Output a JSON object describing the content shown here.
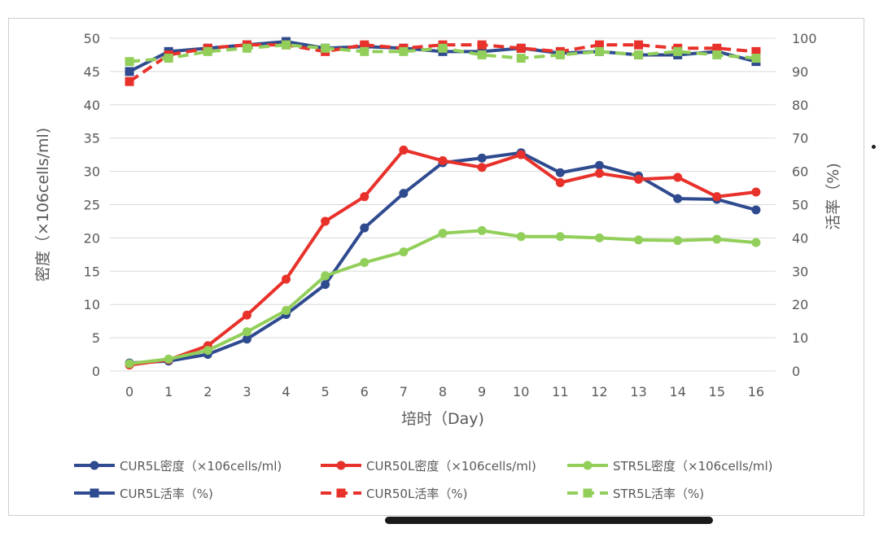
{
  "chart_data": {
    "type": "line",
    "x": [
      0,
      1,
      2,
      3,
      4,
      5,
      6,
      7,
      8,
      9,
      10,
      11,
      12,
      13,
      14,
      15,
      16
    ],
    "x_label": "培时（Day)",
    "y_left_label": "密度（×106cells/ml)",
    "y_right_label": "活率（%)",
    "y_left_lim": [
      0,
      50
    ],
    "y_right_lim": [
      0,
      100
    ],
    "y_left_ticks": [
      0,
      5,
      10,
      15,
      20,
      25,
      30,
      35,
      40,
      45,
      50
    ],
    "y_right_ticks": [
      0,
      10,
      20,
      30,
      40,
      50,
      60,
      70,
      80,
      90,
      100
    ],
    "gridlines": true,
    "legend_position": "bottom",
    "colors": {
      "blue": "#2f4b8f",
      "red": "#e8312a",
      "green": "#92cf5a",
      "grid": "#d9d9d9",
      "text": "#595959"
    },
    "series": [
      {
        "name": "CUR5L密度（×106cells/ml)",
        "axis": "left",
        "marker": "circle",
        "dash": "solid",
        "color": "#2f4b8f",
        "values": [
          1.2,
          1.5,
          2.5,
          4.8,
          8.5,
          13,
          21.5,
          26.7,
          31.3,
          32,
          32.8,
          29.8,
          30.9,
          29.3,
          25.9,
          25.8,
          24.2
        ]
      },
      {
        "name": "CUR50L密度（×106cells/ml)",
        "axis": "left",
        "marker": "circle",
        "dash": "solid",
        "color": "#e8312a",
        "values": [
          0.9,
          1.7,
          3.8,
          8.4,
          13.8,
          22.5,
          26.2,
          33.2,
          31.6,
          30.6,
          32.5,
          28.3,
          29.7,
          28.8,
          29.1,
          26.2,
          26.9
        ]
      },
      {
        "name": "STR5L密度（×106cells/ml)",
        "axis": "left",
        "marker": "circle",
        "dash": "solid",
        "color": "#92cf5a",
        "values": [
          1.1,
          1.8,
          3.1,
          5.9,
          9.1,
          14.3,
          16.3,
          17.9,
          20.7,
          21.1,
          20.2,
          20.2,
          20,
          19.7,
          19.6,
          19.8,
          19.3
        ]
      },
      {
        "name": "CUR5L活率（%)",
        "axis": "right",
        "marker": "square",
        "dash": "solid",
        "color": "#2f4b8f",
        "values": [
          90,
          96,
          97,
          98,
          99,
          97,
          97.5,
          97,
          96,
          96,
          97,
          95.5,
          96,
          95,
          95,
          96,
          93
        ]
      },
      {
        "name": "CUR50L活率（%)",
        "axis": "right",
        "marker": "square",
        "dash": "dashed",
        "color": "#e8312a",
        "values": [
          87,
          95,
          97,
          98,
          98,
          96,
          98,
          97,
          98,
          98,
          97,
          96,
          98,
          98,
          97,
          97,
          96
        ]
      },
      {
        "name": "STR5L活率（%)",
        "axis": "right",
        "marker": "square",
        "dash": "dashed",
        "color": "#92cf5a",
        "values": [
          93,
          94,
          96,
          97,
          98,
          97,
          96,
          96,
          97,
          95,
          94,
          95,
          96,
          95,
          96,
          95,
          94
        ]
      }
    ]
  }
}
